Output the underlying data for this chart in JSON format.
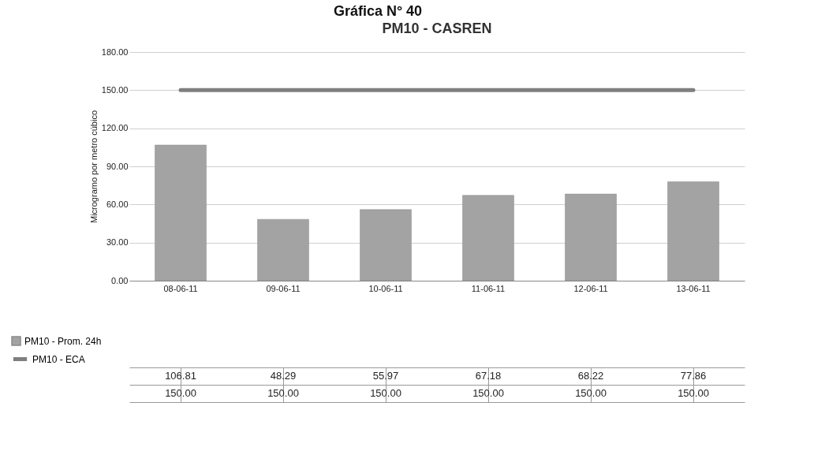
{
  "chart_data": {
    "type": "bar",
    "title": "PM10 - CASREN",
    "ylabel": "Microgramo por metro cúbico",
    "annotations": [
      "Gráfica N° 40"
    ],
    "categories": [
      "08-06-11",
      "09-06-11",
      "10-06-11",
      "11-06-11",
      "12-06-11",
      "13-06-11"
    ],
    "series": [
      {
        "name": "PM10 - Prom. 24h",
        "color": "#a3a3a3",
        "values": [
          106.81,
          48.29,
          55.97,
          67.18,
          68.22,
          77.86
        ],
        "value_labels": [
          "106.81",
          "48.29",
          "55.97",
          "67.18",
          "68.22",
          "77.86"
        ]
      },
      {
        "name": "PM10 - ECA",
        "color": "#7f7f7f",
        "type": "line",
        "values": [
          150.0,
          150.0,
          150.0,
          150.0,
          150.0,
          150.0
        ],
        "value_labels": [
          "150.00",
          "150.00",
          "150.00",
          "150.00",
          "150.00",
          "150.00"
        ]
      }
    ],
    "ylim": [
      0,
      180
    ],
    "yticks": [
      {
        "value": 0,
        "label": "0.00"
      },
      {
        "value": 30,
        "label": "30.00"
      },
      {
        "value": 60,
        "label": "60.00"
      },
      {
        "value": 90,
        "label": "90.00"
      },
      {
        "value": 120,
        "label": "120.00"
      },
      {
        "value": 150,
        "label": "150.00"
      },
      {
        "value": 180,
        "label": "180.00"
      }
    ],
    "grid": "y",
    "legend": "bottom left"
  }
}
